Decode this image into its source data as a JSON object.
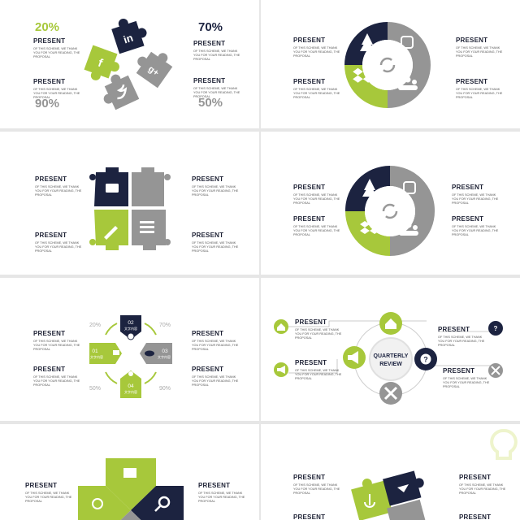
{
  "colors": {
    "navy": "#1c2340",
    "lime": "#a7c83b",
    "gray": "#959595",
    "white": "#ffffff"
  },
  "text_block": {
    "title": "PRESENT",
    "body": "OF THIS SCHEME, WE THANK\nYOU FOR YOUR READING, THE\nPROPOSAL"
  },
  "slide1": {
    "pct_tl": "20%",
    "pct_tr": "70%",
    "pct_bl": "90%",
    "pct_br": "50%",
    "icons": [
      "linkedin-icon",
      "facebook-icon",
      "googleplus-icon",
      "twitter-icon"
    ],
    "icon_glyphs": {
      "linkedin": "in",
      "facebook": "f",
      "googleplus": "g+"
    }
  },
  "slide2": {
    "icons": [
      "tree-icon",
      "instagram-icon",
      "refresh-icon",
      "dropbox-icon",
      "group-icon"
    ]
  },
  "slide3": {
    "icons": [
      "briefcase-icon",
      "edit-icon",
      "list-icon"
    ]
  },
  "slide5": {
    "steps": [
      {
        "num": "01",
        "label": "文字内容"
      },
      {
        "num": "02",
        "label": "文字内容"
      },
      {
        "num": "03",
        "label": "文字内容"
      },
      {
        "num": "04",
        "label": "文字内容"
      }
    ],
    "pcts": [
      "20%",
      "70%",
      "50%",
      "90%"
    ]
  },
  "slide6": {
    "center_line1": "QUARTERLY",
    "center_line2": "REVIEW",
    "icons": [
      "home-icon",
      "megaphone-icon",
      "question-icon",
      "tools-icon"
    ],
    "question_glyph": "?"
  }
}
